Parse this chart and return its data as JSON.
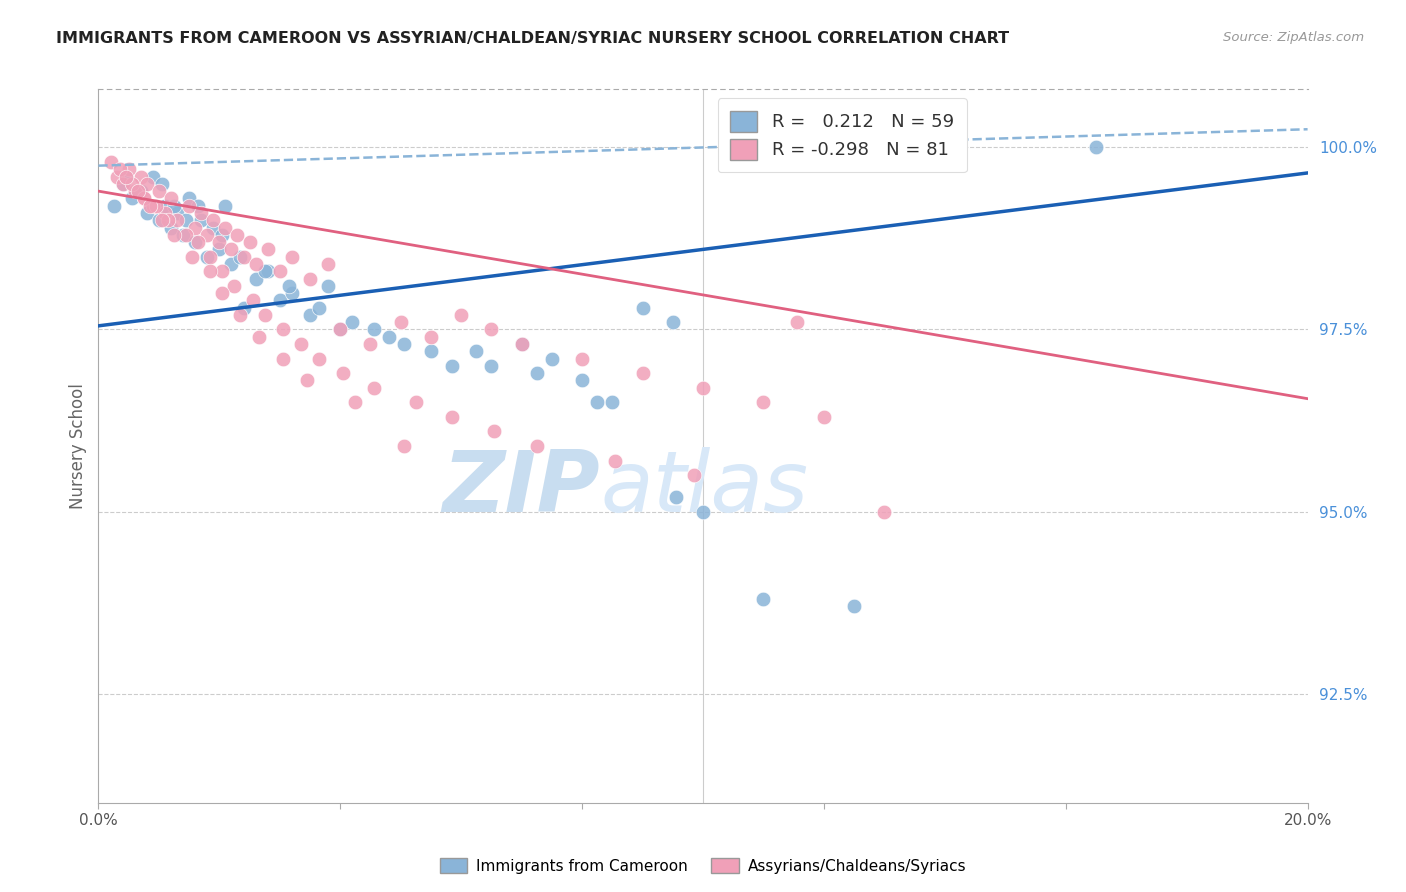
{
  "title": "IMMIGRANTS FROM CAMEROON VS ASSYRIAN/CHALDEAN/SYRIAC NURSERY SCHOOL CORRELATION CHART",
  "source": "Source: ZipAtlas.com",
  "ylabel": "Nursery School",
  "ylabel_right_ticks": [
    "92.5%",
    "95.0%",
    "97.5%",
    "100.0%"
  ],
  "ylabel_right_values": [
    92.5,
    95.0,
    97.5,
    100.0
  ],
  "xmin": 0.0,
  "xmax": 20.0,
  "ymin": 91.0,
  "ymax": 100.8,
  "legend_blue_R": "0.212",
  "legend_blue_N": "59",
  "legend_pink_R": "-0.298",
  "legend_pink_N": "81",
  "legend_label_blue": "Immigrants from Cameroon",
  "legend_label_pink": "Assyrians/Chaldeans/Syriacs",
  "blue_color": "#8ab4d8",
  "pink_color": "#f0a0b8",
  "blue_line_color": "#1a5fb4",
  "pink_line_color": "#e06080",
  "dashed_line_color": "#8ab4d8",
  "right_axis_color": "#4a90d9",
  "watermark_zip_color": "#c8ddf0",
  "watermark_atlas_color": "#d8e8f8",
  "blue_scatter_x": [
    0.25,
    0.4,
    0.55,
    0.7,
    0.8,
    0.9,
    1.0,
    1.1,
    1.2,
    1.3,
    1.4,
    1.5,
    1.6,
    1.7,
    1.8,
    1.9,
    2.0,
    2.1,
    2.2,
    2.4,
    2.6,
    2.8,
    3.0,
    3.2,
    3.5,
    3.8,
    4.0,
    4.2,
    4.8,
    5.5,
    6.5,
    7.0,
    7.5,
    8.0,
    8.5,
    9.0,
    9.5,
    10.0,
    11.0,
    12.5,
    0.45,
    0.65,
    1.05,
    1.25,
    1.45,
    1.65,
    2.05,
    2.35,
    2.75,
    3.15,
    3.65,
    4.55,
    5.05,
    5.85,
    6.25,
    7.25,
    8.25,
    9.55,
    16.5
  ],
  "blue_scatter_y": [
    99.2,
    99.5,
    99.3,
    99.4,
    99.1,
    99.6,
    99.0,
    99.2,
    98.9,
    99.1,
    98.8,
    99.3,
    98.7,
    99.0,
    98.5,
    98.9,
    98.6,
    99.2,
    98.4,
    97.8,
    98.2,
    98.3,
    97.9,
    98.0,
    97.7,
    98.1,
    97.5,
    97.6,
    97.4,
    97.2,
    97.0,
    97.3,
    97.1,
    96.8,
    96.5,
    97.8,
    97.6,
    95.0,
    93.8,
    93.7,
    99.6,
    99.4,
    99.5,
    99.2,
    99.0,
    99.2,
    98.8,
    98.5,
    98.3,
    98.1,
    97.8,
    97.5,
    97.3,
    97.0,
    97.2,
    96.9,
    96.5,
    95.2,
    100.0
  ],
  "pink_scatter_x": [
    0.2,
    0.3,
    0.4,
    0.5,
    0.6,
    0.7,
    0.75,
    0.8,
    0.9,
    1.0,
    1.1,
    1.2,
    1.3,
    1.5,
    1.6,
    1.7,
    1.8,
    1.9,
    2.0,
    2.1,
    2.2,
    2.3,
    2.4,
    2.5,
    2.6,
    2.8,
    3.0,
    3.2,
    3.5,
    3.8,
    4.0,
    4.5,
    5.0,
    5.5,
    6.0,
    6.5,
    7.0,
    8.0,
    9.0,
    10.0,
    11.0,
    12.0,
    13.0,
    0.35,
    0.55,
    0.75,
    0.95,
    1.15,
    1.45,
    1.65,
    1.85,
    2.05,
    2.25,
    2.55,
    2.75,
    3.05,
    3.35,
    3.65,
    4.05,
    4.55,
    5.25,
    5.85,
    6.55,
    7.25,
    8.55,
    9.85,
    11.55,
    0.45,
    0.65,
    0.85,
    1.05,
    1.25,
    1.55,
    1.85,
    2.05,
    2.35,
    2.65,
    3.05,
    3.45,
    4.25,
    5.05
  ],
  "pink_scatter_y": [
    99.8,
    99.6,
    99.5,
    99.7,
    99.4,
    99.6,
    99.3,
    99.5,
    99.2,
    99.4,
    99.1,
    99.3,
    99.0,
    99.2,
    98.9,
    99.1,
    98.8,
    99.0,
    98.7,
    98.9,
    98.6,
    98.8,
    98.5,
    98.7,
    98.4,
    98.6,
    98.3,
    98.5,
    98.2,
    98.4,
    97.5,
    97.3,
    97.6,
    97.4,
    97.7,
    97.5,
    97.3,
    97.1,
    96.9,
    96.7,
    96.5,
    96.3,
    95.0,
    99.7,
    99.5,
    99.3,
    99.2,
    99.0,
    98.8,
    98.7,
    98.5,
    98.3,
    98.1,
    97.9,
    97.7,
    97.5,
    97.3,
    97.1,
    96.9,
    96.7,
    96.5,
    96.3,
    96.1,
    95.9,
    95.7,
    95.5,
    97.6,
    99.6,
    99.4,
    99.2,
    99.0,
    98.8,
    98.5,
    98.3,
    98.0,
    97.7,
    97.4,
    97.1,
    96.8,
    96.5,
    95.9
  ],
  "blue_trend_x": [
    0.0,
    20.0
  ],
  "blue_trend_y": [
    97.55,
    99.65
  ],
  "pink_trend_x": [
    0.0,
    20.0
  ],
  "pink_trend_y": [
    99.4,
    96.55
  ],
  "dashed_trend_y": [
    99.75,
    100.25
  ],
  "xticks": [
    0,
    4,
    8,
    12,
    16,
    20
  ],
  "xticklabels": [
    "0.0%",
    "",
    "",
    "",
    "",
    "20.0%"
  ]
}
